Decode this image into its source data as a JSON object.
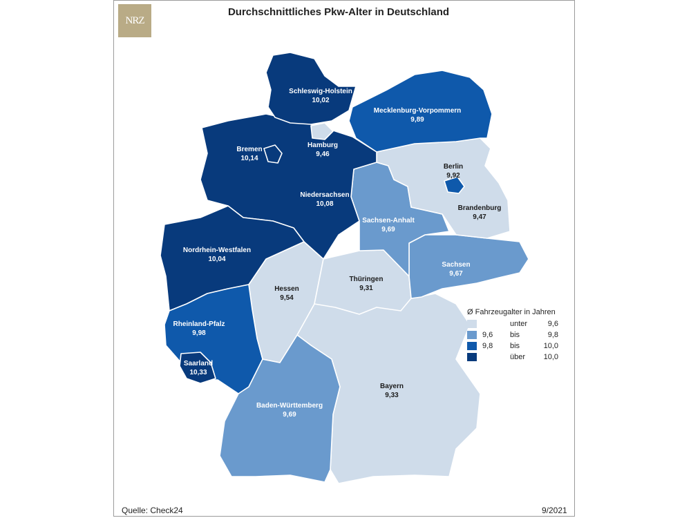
{
  "title": "Durchschnittliches Pkw-Alter in Deutschland",
  "logo_text": "NRZ",
  "source": "Quelle: Check24",
  "date": "9/2021",
  "colors": {
    "class1": "#cfdcea",
    "class2": "#6a9acd",
    "class3": "#0f59ab",
    "class4": "#083a7c"
  },
  "states": [
    {
      "id": "schleswig-holstein",
      "name": "Schleswig-Holstein",
      "value": "10,02",
      "class": 4
    },
    {
      "id": "hamburg",
      "name": "Hamburg",
      "value": "9,46",
      "class": 1
    },
    {
      "id": "mecklenburg-vorpommern",
      "name": "Mecklenburg-Vorpommern",
      "value": "9,89",
      "class": 3
    },
    {
      "id": "bremen",
      "name": "Bremen",
      "value": "10,14",
      "class": 4
    },
    {
      "id": "berlin",
      "name": "Berlin",
      "value": "9,92",
      "class": 3
    },
    {
      "id": "niedersachsen",
      "name": "Niedersachsen",
      "value": "10,08",
      "class": 4
    },
    {
      "id": "brandenburg",
      "name": "Brandenburg",
      "value": "9,47",
      "class": 1
    },
    {
      "id": "sachsen-anhalt",
      "name": "Sachsen-Anhalt",
      "value": "9,69",
      "class": 2
    },
    {
      "id": "nordrhein-westfalen",
      "name": "Nordrhein-Westfalen",
      "value": "10,04",
      "class": 4
    },
    {
      "id": "sachsen",
      "name": "Sachsen",
      "value": "9,67",
      "class": 2
    },
    {
      "id": "hessen",
      "name": "Hessen",
      "value": "9,54",
      "class": 1
    },
    {
      "id": "thueringen",
      "name": "Thüringen",
      "value": "9,31",
      "class": 1
    },
    {
      "id": "rheinland-pfalz",
      "name": "Rheinland-Pfalz",
      "value": "9,98",
      "class": 3
    },
    {
      "id": "saarland",
      "name": "Saarland",
      "value": "10,33",
      "class": 4
    },
    {
      "id": "bayern",
      "name": "Bayern",
      "value": "9,33",
      "class": 1
    },
    {
      "id": "baden-wuerttemberg",
      "name": "Baden-Württemberg",
      "value": "9,69",
      "class": 2
    }
  ],
  "legend": {
    "title": "Ø Fahrzeugalter in Jahren",
    "items": [
      {
        "lo": "",
        "rel": "unter",
        "hi": "9,6",
        "class": 1
      },
      {
        "lo": "9,6",
        "rel": "bis",
        "hi": "9,8",
        "class": 2
      },
      {
        "lo": "9,8",
        "rel": "bis",
        "hi": "10,0",
        "class": 3
      },
      {
        "lo": "",
        "rel": "über",
        "hi": "10,0",
        "class": 4
      }
    ]
  }
}
